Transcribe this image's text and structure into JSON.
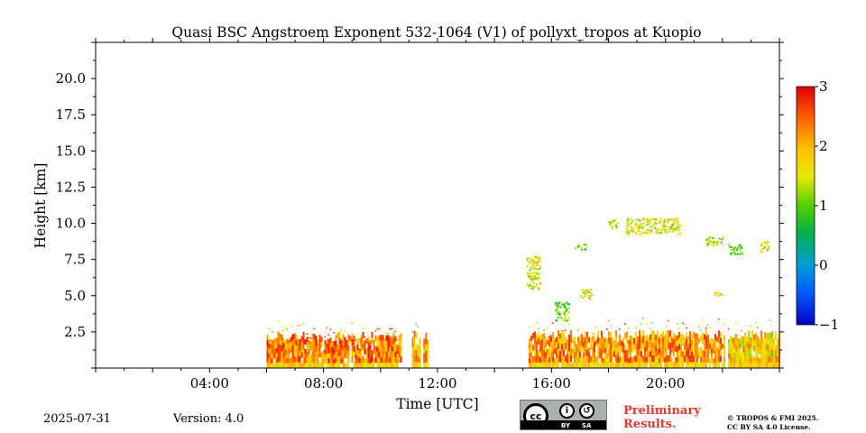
{
  "chart_data": {
    "type": "heatmap",
    "title": "Quasi BSC Angstroem Exponent 532-1064 (V1) of pollyxt_tropos at Kuopio",
    "xlabel": "Time [UTC]",
    "ylabel": "Height [km]",
    "xlim_hours": [
      0,
      24
    ],
    "ylim_km": [
      0,
      22.5
    ],
    "x_ticks": [
      "04:00",
      "08:00",
      "12:00",
      "16:00",
      "20:00"
    ],
    "x_tick_hours": [
      4,
      8,
      12,
      16,
      20
    ],
    "y_ticks": [
      "2.5",
      "5.0",
      "7.5",
      "10.0",
      "12.5",
      "15.0",
      "17.5",
      "20.0"
    ],
    "y_tick_values": [
      2.5,
      5.0,
      7.5,
      10.0,
      12.5,
      15.0,
      17.5,
      20.0
    ],
    "colorbar": {
      "min": -1,
      "max": 3,
      "ticks": [
        "−1",
        "0",
        "1",
        "2",
        "3"
      ],
      "tick_values": [
        -1,
        0,
        1,
        2,
        3
      ],
      "colormap": "jet"
    },
    "measurement_periods": [
      {
        "start": 6.0,
        "end": 10.7,
        "top_km": 2.2,
        "dominant_value": 2.3
      },
      {
        "start": 11.1,
        "end": 11.4,
        "top_km": 2.3,
        "dominant_value": 2.0
      },
      {
        "start": 11.5,
        "end": 11.65,
        "top_km": 2.2,
        "dominant_value": 2.0
      },
      {
        "start": 15.2,
        "end": 22.05,
        "top_km": 2.3,
        "dominant_value": 2.2
      },
      {
        "start": 22.2,
        "end": 24.0,
        "top_km": 2.3,
        "dominant_value": 1.8
      }
    ],
    "elevated_features": [
      {
        "start": 15.1,
        "end": 15.6,
        "bottom_km": 5.5,
        "top_km": 7.8,
        "value": 1.5
      },
      {
        "start": 16.1,
        "end": 16.6,
        "bottom_km": 3.3,
        "top_km": 4.6,
        "value": 1.0
      },
      {
        "start": 17.0,
        "end": 17.4,
        "bottom_km": 4.8,
        "top_km": 5.5,
        "value": 1.6
      },
      {
        "start": 16.8,
        "end": 17.2,
        "bottom_km": 8.2,
        "top_km": 8.6,
        "value": 1.2
      },
      {
        "start": 18.0,
        "end": 18.3,
        "bottom_km": 9.6,
        "top_km": 10.3,
        "value": 1.3
      },
      {
        "start": 18.6,
        "end": 20.5,
        "bottom_km": 9.3,
        "top_km": 10.4,
        "value": 1.5
      },
      {
        "start": 21.4,
        "end": 22.0,
        "bottom_km": 8.5,
        "top_km": 9.2,
        "value": 1.2
      },
      {
        "start": 22.2,
        "end": 22.7,
        "bottom_km": 7.9,
        "top_km": 8.6,
        "value": 0.9
      },
      {
        "start": 23.3,
        "end": 23.6,
        "bottom_km": 8.0,
        "top_km": 8.8,
        "value": 1.4
      },
      {
        "start": 21.7,
        "end": 22.0,
        "bottom_km": 5.0,
        "top_km": 5.3,
        "value": 1.8
      }
    ]
  },
  "footer": {
    "date": "2025-07-31",
    "version": "Version: 4.0",
    "license_badge": {
      "cc": "cc",
      "by": "BY",
      "sa": "SA"
    },
    "preliminary_line1": "Preliminary",
    "preliminary_line2": "Results.",
    "copyright_line1": "© TROPOS & FMI 2025.",
    "copyright_line2": "CC BY SA 4.0 License."
  }
}
